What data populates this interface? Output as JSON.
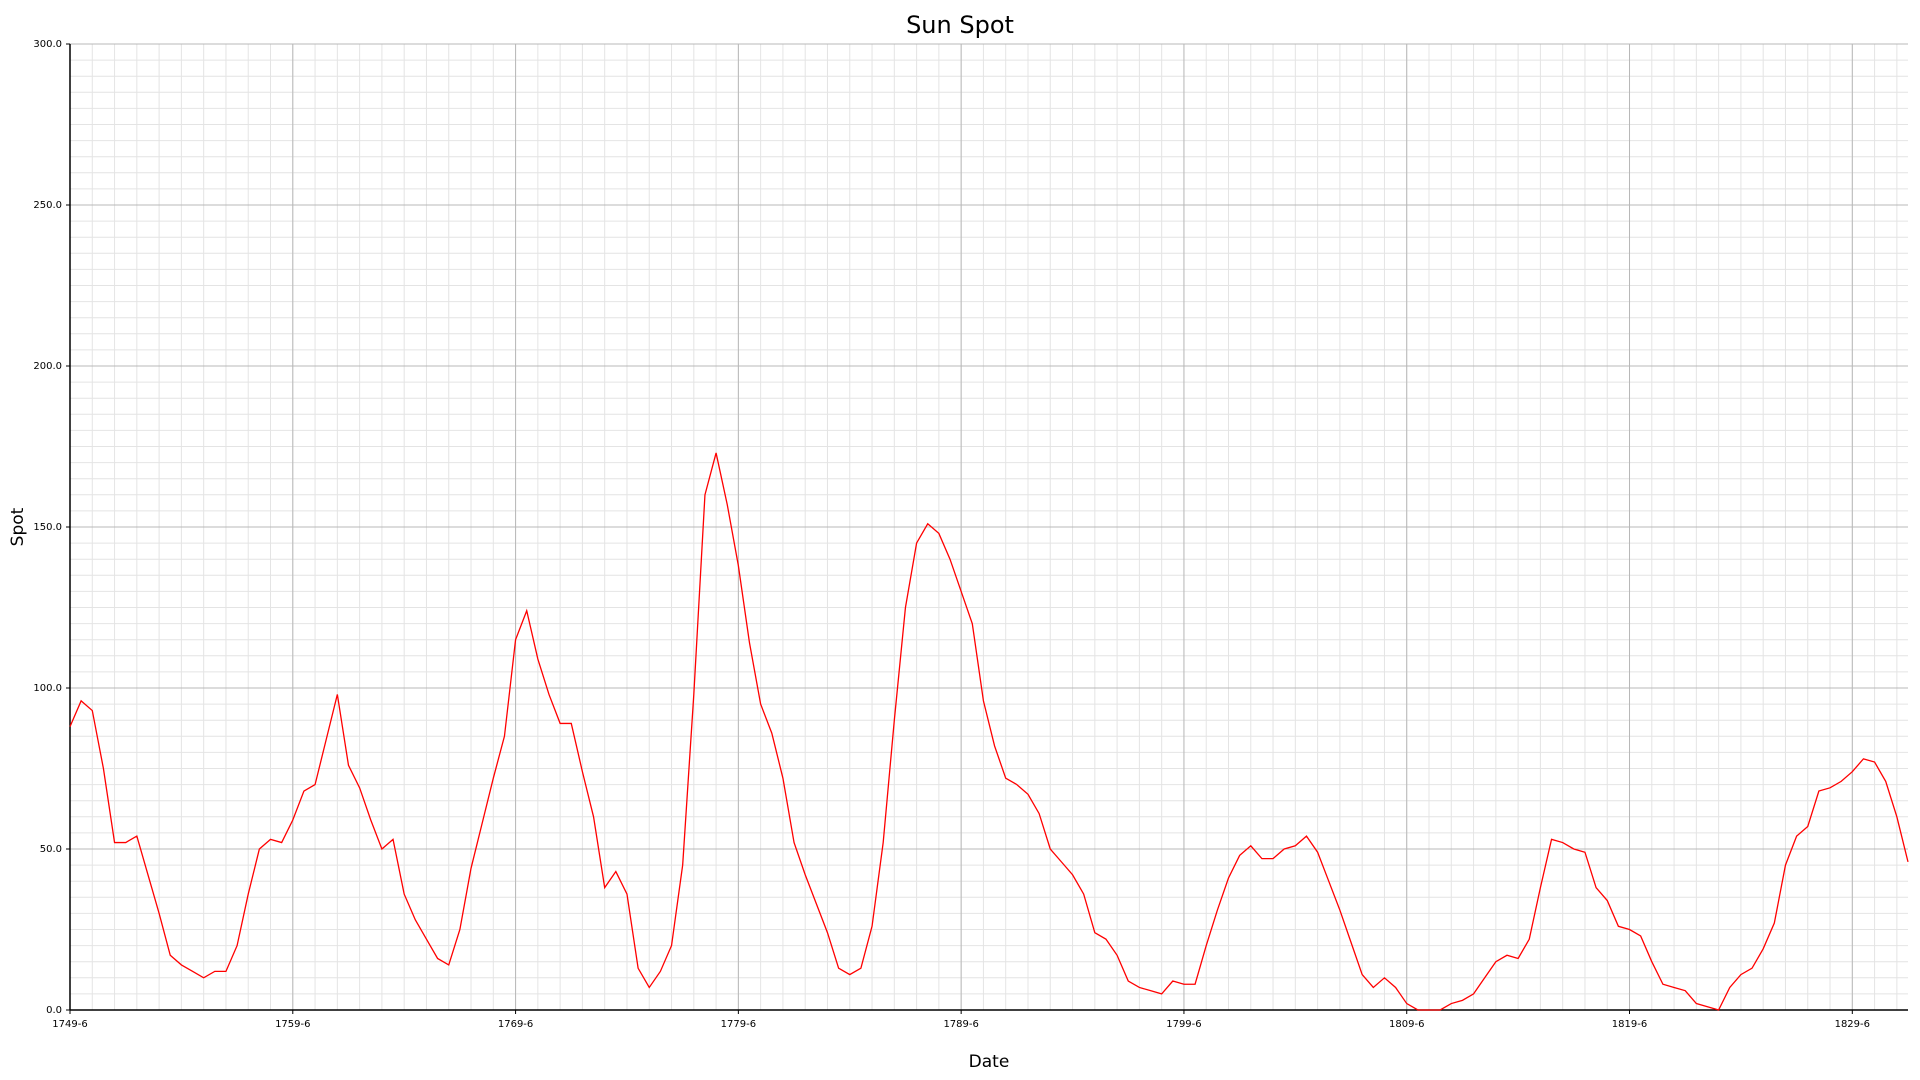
{
  "chart_data": {
    "type": "line",
    "title": "Sun Spot",
    "x_label": "Date",
    "y_label": "Spot",
    "color": "#ff0000",
    "grid": true,
    "minor_grid": true,
    "x": [
      "1749-6",
      "1749-12",
      "1750-6",
      "1750-12",
      "1751-6",
      "1751-12",
      "1752-6",
      "1752-12",
      "1753-6",
      "1753-12",
      "1754-6",
      "1754-12",
      "1755-6",
      "1755-12",
      "1756-6",
      "1756-12",
      "1757-6",
      "1757-12",
      "1758-6",
      "1758-12",
      "1759-6",
      "1759-12",
      "1760-6",
      "1760-12",
      "1761-6",
      "1761-12",
      "1762-6",
      "1762-12",
      "1763-6",
      "1763-12",
      "1764-6",
      "1764-12",
      "1765-6",
      "1765-12",
      "1766-6",
      "1766-12",
      "1767-6",
      "1767-12",
      "1768-6",
      "1768-12",
      "1769-6",
      "1769-12",
      "1770-6",
      "1770-12",
      "1771-6",
      "1771-12",
      "1772-6",
      "1772-12",
      "1773-6",
      "1773-12",
      "1774-6",
      "1774-12",
      "1775-6",
      "1775-12",
      "1776-6",
      "1776-12",
      "1777-6",
      "1777-12",
      "1778-6",
      "1778-12",
      "1779-6",
      "1779-12",
      "1780-6",
      "1780-12",
      "1781-6",
      "1781-12",
      "1782-6",
      "1782-12",
      "1783-6",
      "1783-12",
      "1784-6",
      "1784-12",
      "1785-6",
      "1785-12",
      "1786-6",
      "1786-12",
      "1787-6",
      "1787-12",
      "1788-6",
      "1788-12",
      "1789-6",
      "1789-12",
      "1790-6",
      "1790-12",
      "1791-6",
      "1791-12",
      "1792-6",
      "1792-12",
      "1793-6",
      "1793-12",
      "1794-6",
      "1794-12",
      "1795-6",
      "1795-12",
      "1796-6",
      "1796-12",
      "1797-6",
      "1797-12",
      "1798-6",
      "1798-12",
      "1799-6",
      "1799-12",
      "1800-6",
      "1800-12",
      "1801-6",
      "1801-12",
      "1802-6",
      "1802-12",
      "1803-6",
      "1803-12",
      "1804-6",
      "1804-12",
      "1805-6",
      "1805-12",
      "1806-6",
      "1806-12",
      "1807-6",
      "1807-12",
      "1808-6",
      "1808-12",
      "1809-6",
      "1809-12",
      "1810-6",
      "1810-12",
      "1811-6",
      "1811-12",
      "1812-6",
      "1812-12",
      "1813-6",
      "1813-12",
      "1814-6",
      "1814-12",
      "1815-6",
      "1815-12",
      "1816-6",
      "1816-12",
      "1817-6",
      "1817-12",
      "1818-6",
      "1818-12",
      "1819-6",
      "1819-12",
      "1820-6",
      "1820-12",
      "1821-6",
      "1821-12",
      "1822-6",
      "1822-12",
      "1823-6",
      "1823-12",
      "1824-6",
      "1824-12",
      "1825-6",
      "1825-12",
      "1826-6",
      "1826-12",
      "1827-6",
      "1827-12",
      "1828-6",
      "1828-12",
      "1829-6",
      "1829-12",
      "1830-6",
      "1830-12",
      "1831-6",
      "1831-12"
    ],
    "values": [
      88,
      96,
      93,
      75,
      52,
      52,
      54,
      42,
      30,
      17,
      14,
      12,
      10,
      12,
      12,
      20,
      36,
      50,
      53,
      52,
      59,
      68,
      70,
      84,
      98,
      76,
      69,
      59,
      50,
      53,
      36,
      28,
      22,
      16,
      14,
      25,
      44,
      58,
      72,
      85,
      115,
      124,
      109,
      98,
      89,
      89,
      74,
      60,
      38,
      43,
      36,
      13,
      7,
      12,
      20,
      45,
      98,
      160,
      173,
      157,
      138,
      114,
      95,
      86,
      72,
      52,
      42,
      33,
      24,
      13,
      11,
      13,
      26,
      52,
      90,
      125,
      145,
      151,
      148,
      140,
      130,
      120,
      96,
      82,
      72,
      70,
      67,
      61,
      50,
      46,
      42,
      36,
      24,
      22,
      17,
      9,
      7,
      6,
      5,
      9,
      8,
      8,
      20,
      31,
      41,
      48,
      51,
      47,
      47,
      50,
      51,
      54,
      49,
      40,
      31,
      21,
      11,
      7,
      10,
      7,
      2,
      0,
      0,
      0,
      2,
      3,
      5,
      10,
      15,
      17,
      16,
      22,
      38,
      53,
      52,
      50,
      49,
      38,
      34,
      26,
      25,
      23,
      15,
      8,
      7,
      6,
      2,
      1,
      0,
      7,
      11,
      13,
      19,
      27,
      45,
      54,
      57,
      68,
      69,
      71,
      74,
      78,
      77,
      71,
      60,
      46
    ],
    "xlim": [
      "1749-6",
      "1831-12"
    ],
    "xticks": [
      "1749-6",
      "1759-6",
      "1769-6",
      "1779-6",
      "1789-6",
      "1799-6",
      "1809-6",
      "1819-6",
      "1829-6"
    ],
    "ylim": [
      0,
      300
    ],
    "yticks": [
      {
        "value": 0,
        "label": "0.0"
      },
      {
        "value": 50,
        "label": "50.0"
      },
      {
        "value": 100,
        "label": "100.0"
      },
      {
        "value": 150,
        "label": "150.0"
      },
      {
        "value": 200,
        "label": "200.0"
      },
      {
        "value": 250,
        "label": "250.0"
      },
      {
        "value": 300,
        "label": "300.0"
      }
    ]
  }
}
